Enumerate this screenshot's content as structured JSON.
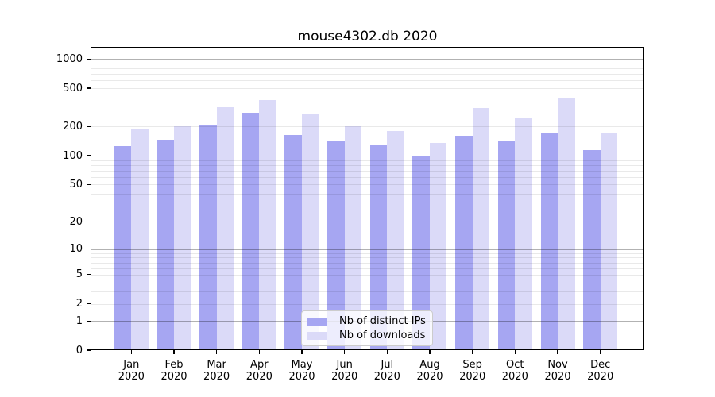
{
  "chart_data": {
    "type": "bar",
    "title": "mouse4302.db 2020",
    "categories": [
      "Jan 2020",
      "Feb 2020",
      "Mar 2020",
      "Apr 2020",
      "May 2020",
      "Jun 2020",
      "Jul 2020",
      "Aug 2020",
      "Sep 2020",
      "Oct 2020",
      "Nov 2020",
      "Dec 2020"
    ],
    "series": [
      {
        "name": "Nb of distinct IPs",
        "color": "#a6a6f2",
        "values": [
          125,
          145,
          210,
          280,
          165,
          140,
          130,
          100,
          160,
          140,
          170,
          115
        ]
      },
      {
        "name": "Nb of downloads",
        "color": "#dbdaf8",
        "values": [
          190,
          200,
          320,
          380,
          275,
          200,
          180,
          135,
          310,
          245,
          400,
          170
        ]
      }
    ],
    "xlabel": "",
    "ylabel": "",
    "yscale": "symlog",
    "ylim": [
      0,
      1300
    ],
    "yticks": [
      1000,
      500,
      200,
      100,
      50,
      20,
      10,
      5,
      2,
      1,
      0
    ],
    "grid": {
      "major": [
        1,
        10,
        100,
        1000
      ],
      "minor": [
        2,
        3,
        4,
        5,
        6,
        7,
        8,
        9,
        20,
        30,
        40,
        50,
        60,
        70,
        80,
        90,
        200,
        300,
        400,
        500,
        600,
        700,
        800,
        900
      ]
    },
    "legend_position": "lower-center",
    "legend_items": [
      "Nb of distinct IPs",
      "Nb of downloads"
    ]
  },
  "colors": {
    "bar_dark": "#a6a6f2",
    "bar_light": "#dbdaf8",
    "grid_major": "#b3b3b3",
    "grid_minor": "#e9e9e9",
    "axis": "#000000",
    "legend_border": "#cccccc"
  }
}
